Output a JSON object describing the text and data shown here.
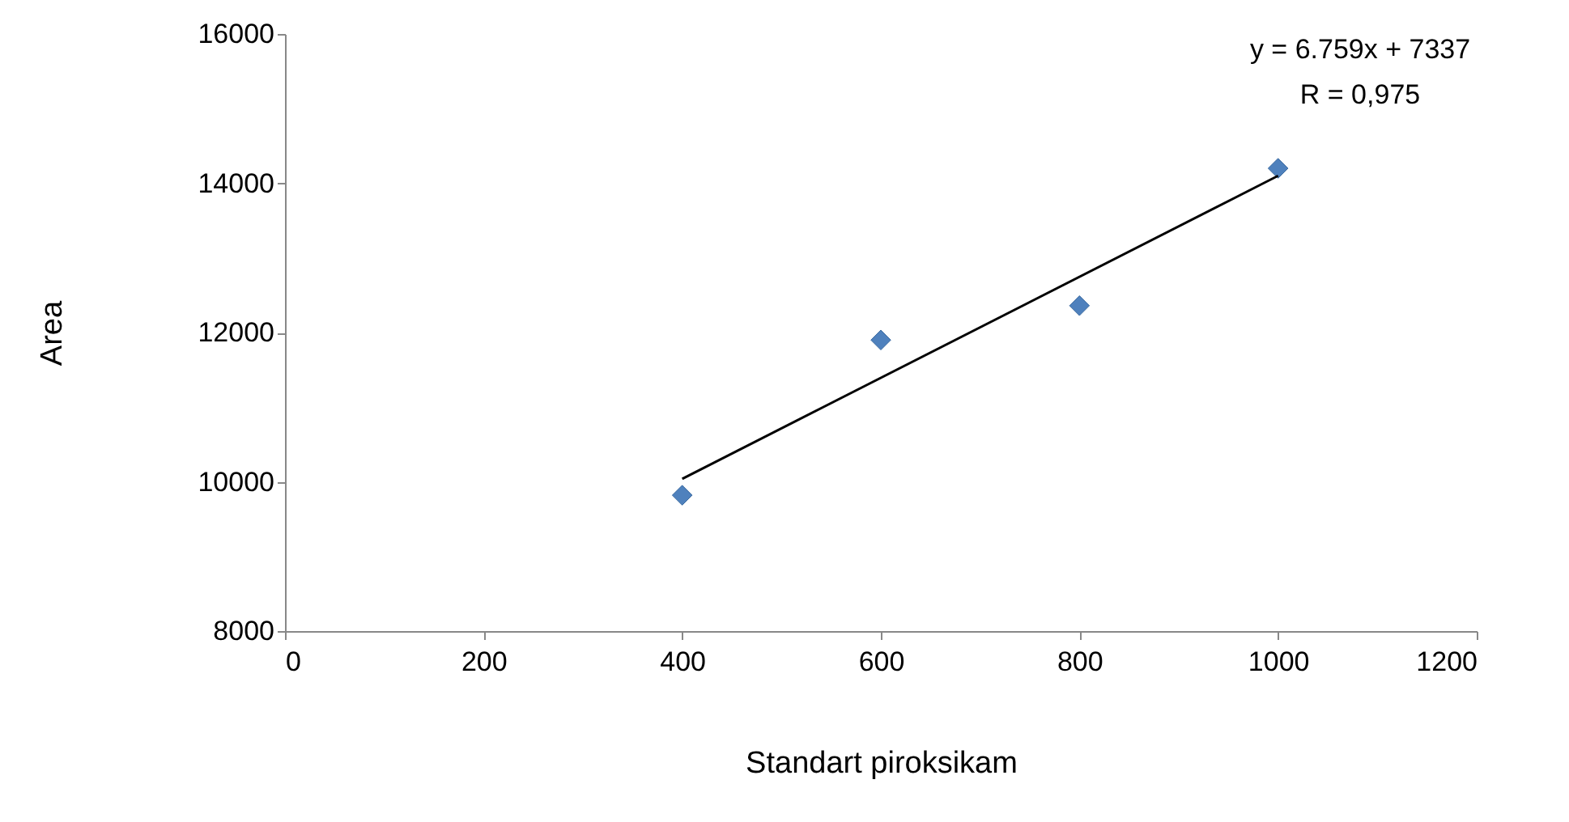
{
  "chart_data": {
    "type": "scatter",
    "xlabel": "Standart piroksikam",
    "ylabel": "Area",
    "x": [
      400,
      600,
      800,
      1000
    ],
    "series": [
      {
        "color": "#4f81bd",
        "marker": "diamond",
        "values": [
          9820,
          11900,
          12360,
          14200
        ]
      },
      {
        "type": "line",
        "color": "#000000",
        "x": [
          400,
          1000
        ],
        "values": [
          10040,
          14100
        ]
      }
    ],
    "xlim": [
      0,
      1200
    ],
    "xticks": [
      0,
      200,
      400,
      600,
      800,
      1000,
      1200
    ],
    "ylim": [
      8000,
      16000
    ],
    "yticks": [
      8000,
      10000,
      12000,
      14000,
      16000
    ],
    "grid": false,
    "annotations": [
      "y = 6.759x + 7337",
      "R = 0,975"
    ]
  }
}
